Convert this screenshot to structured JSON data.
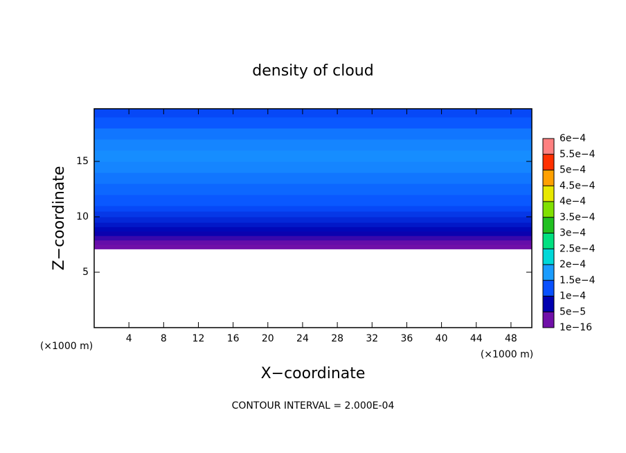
{
  "chart_data": {
    "type": "contour",
    "title": "density of cloud",
    "x_label": "X−coordinate",
    "y_label": "Z−coordinate",
    "x_unit": "(×1000 m)",
    "y_unit": "(×1000 m)",
    "footer": "CONTOUR INTERVAL = 2.000E-04",
    "xlim": [
      0,
      50.4
    ],
    "xticks": [
      4,
      8,
      12,
      16,
      20,
      24,
      28,
      32,
      36,
      40,
      44,
      48
    ],
    "ylim": [
      0,
      19.75
    ],
    "yticks": [
      5,
      10,
      15
    ],
    "z": [
      7.1,
      7.5,
      7.9,
      8.3,
      8.7,
      9.1,
      9.5,
      10,
      10.5,
      11,
      12,
      13,
      14,
      15,
      16,
      17,
      18,
      19
    ],
    "values": [
      1e-05,
      3e-05,
      5e-05,
      7e-05,
      8e-05,
      9e-05,
      0.0001,
      0.00011,
      0.00012,
      0.00013,
      0.00014,
      0.00015,
      0.00016,
      0.000165,
      0.00016,
      0.00015,
      0.00013,
      0.00012
    ],
    "colorbar": {
      "levels": [
        {
          "value": 1e-16,
          "label": "1e−16"
        },
        {
          "value": 5e-05,
          "label": "5e−5"
        },
        {
          "value": 0.0001,
          "label": "1e−4"
        },
        {
          "value": 0.00015,
          "label": "1.5e−4"
        },
        {
          "value": 0.0002,
          "label": "2e−4"
        },
        {
          "value": 0.00025,
          "label": "2.5e−4"
        },
        {
          "value": 0.0003,
          "label": "3e−4"
        },
        {
          "value": 0.00035,
          "label": "3.5e−4"
        },
        {
          "value": 0.0004,
          "label": "4e−4"
        },
        {
          "value": 0.00045,
          "label": "4.5e−4"
        },
        {
          "value": 0.0005,
          "label": "5e−4"
        },
        {
          "value": 0.00055,
          "label": "5.5e−4"
        },
        {
          "value": 0.0006,
          "label": "6e−4"
        }
      ],
      "colors": [
        "#7010a8",
        "#0000b0",
        "#0850ff",
        "#1a9cff",
        "#00d8d8",
        "#00e080",
        "#20c020",
        "#80e000",
        "#e8e800",
        "#ffa000",
        "#ff3000",
        "#ff8080"
      ]
    }
  }
}
